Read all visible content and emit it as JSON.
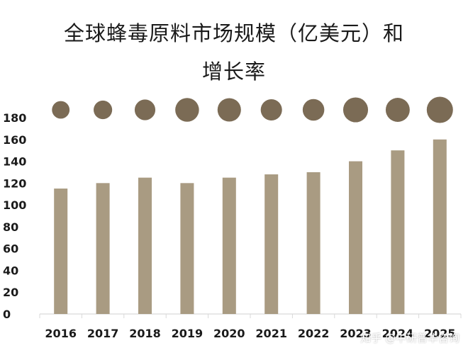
{
  "chart_data": {
    "type": "bar",
    "title_line1": "全球蜂毒原料市场规模（亿美元）和",
    "title_line2": "增长率",
    "categories": [
      "2016",
      "2017",
      "2018",
      "2019",
      "2020",
      "2021",
      "2022",
      "2023",
      "2024",
      "2025"
    ],
    "values": [
      115,
      120,
      125,
      120,
      125,
      128,
      130,
      140,
      150,
      160
    ],
    "growth_rate_bubble_relative": [
      0.45,
      0.5,
      0.62,
      0.82,
      0.8,
      0.66,
      0.68,
      0.9,
      0.84,
      1.0
    ],
    "ylim": [
      0,
      180
    ],
    "yticks": [
      "0",
      "20",
      "40",
      "60",
      "80",
      "100",
      "120",
      "140",
      "160",
      "180"
    ],
    "legend": "none",
    "grid": false,
    "colors": {
      "bar": "#a99b82",
      "bubble": "#7b6b55",
      "axis": "#d9d9d9",
      "text": "#1a1a1a"
    }
  },
  "watermark": "知乎 @中研普华咨询"
}
